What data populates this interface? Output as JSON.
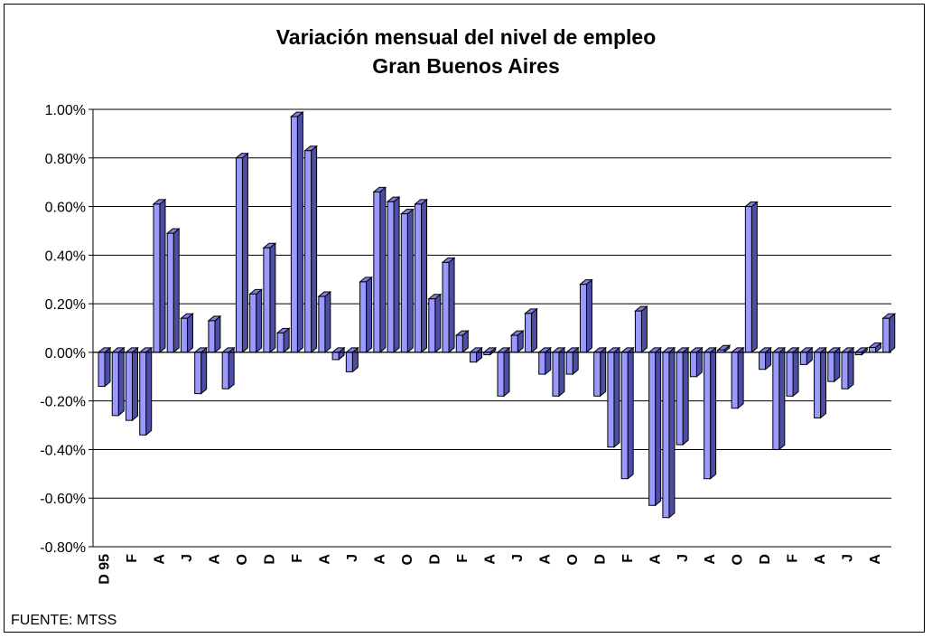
{
  "chart_data": {
    "type": "bar",
    "title": "Variación mensual del nivel de empleo",
    "subtitle": "Gran Buenos Aires",
    "source": "FUENTE: MTSS",
    "ylim": [
      -0.8,
      1.0
    ],
    "yticks": [
      "1.00%",
      "0.80%",
      "0.60%",
      "0.40%",
      "0.20%",
      "0.00%",
      "-0.20%",
      "-0.40%",
      "-0.60%",
      "-0.80%"
    ],
    "ytick_values": [
      1.0,
      0.8,
      0.6,
      0.4,
      0.2,
      0.0,
      -0.2,
      -0.4,
      -0.6,
      -0.8
    ],
    "x_tick_labels": [
      "D 95",
      "F",
      "A",
      "J",
      "A",
      "O",
      "D",
      "F",
      "A",
      "J",
      "A",
      "O",
      "D",
      "F",
      "A",
      "J",
      "A",
      "O",
      "D",
      "F",
      "A",
      "J",
      "A",
      "O",
      "D",
      "F",
      "A",
      "J",
      "A"
    ],
    "grid": true,
    "bar_color": "#9999ff",
    "values": [
      -0.14,
      -0.26,
      -0.28,
      -0.34,
      0.61,
      0.49,
      0.14,
      -0.17,
      0.13,
      -0.15,
      0.8,
      0.24,
      0.43,
      0.08,
      0.97,
      0.83,
      0.23,
      -0.03,
      -0.08,
      0.29,
      0.66,
      0.62,
      0.57,
      0.61,
      0.22,
      0.37,
      0.07,
      -0.04,
      -0.01,
      -0.18,
      0.07,
      0.16,
      -0.09,
      -0.18,
      -0.09,
      0.28,
      -0.18,
      -0.39,
      -0.52,
      0.17,
      -0.63,
      -0.68,
      -0.38,
      -0.1,
      -0.52,
      0.01,
      -0.23,
      0.6,
      -0.07,
      -0.4,
      -0.18,
      -0.05,
      -0.27,
      -0.12,
      -0.15,
      -0.01,
      0.02,
      0.14
    ]
  }
}
